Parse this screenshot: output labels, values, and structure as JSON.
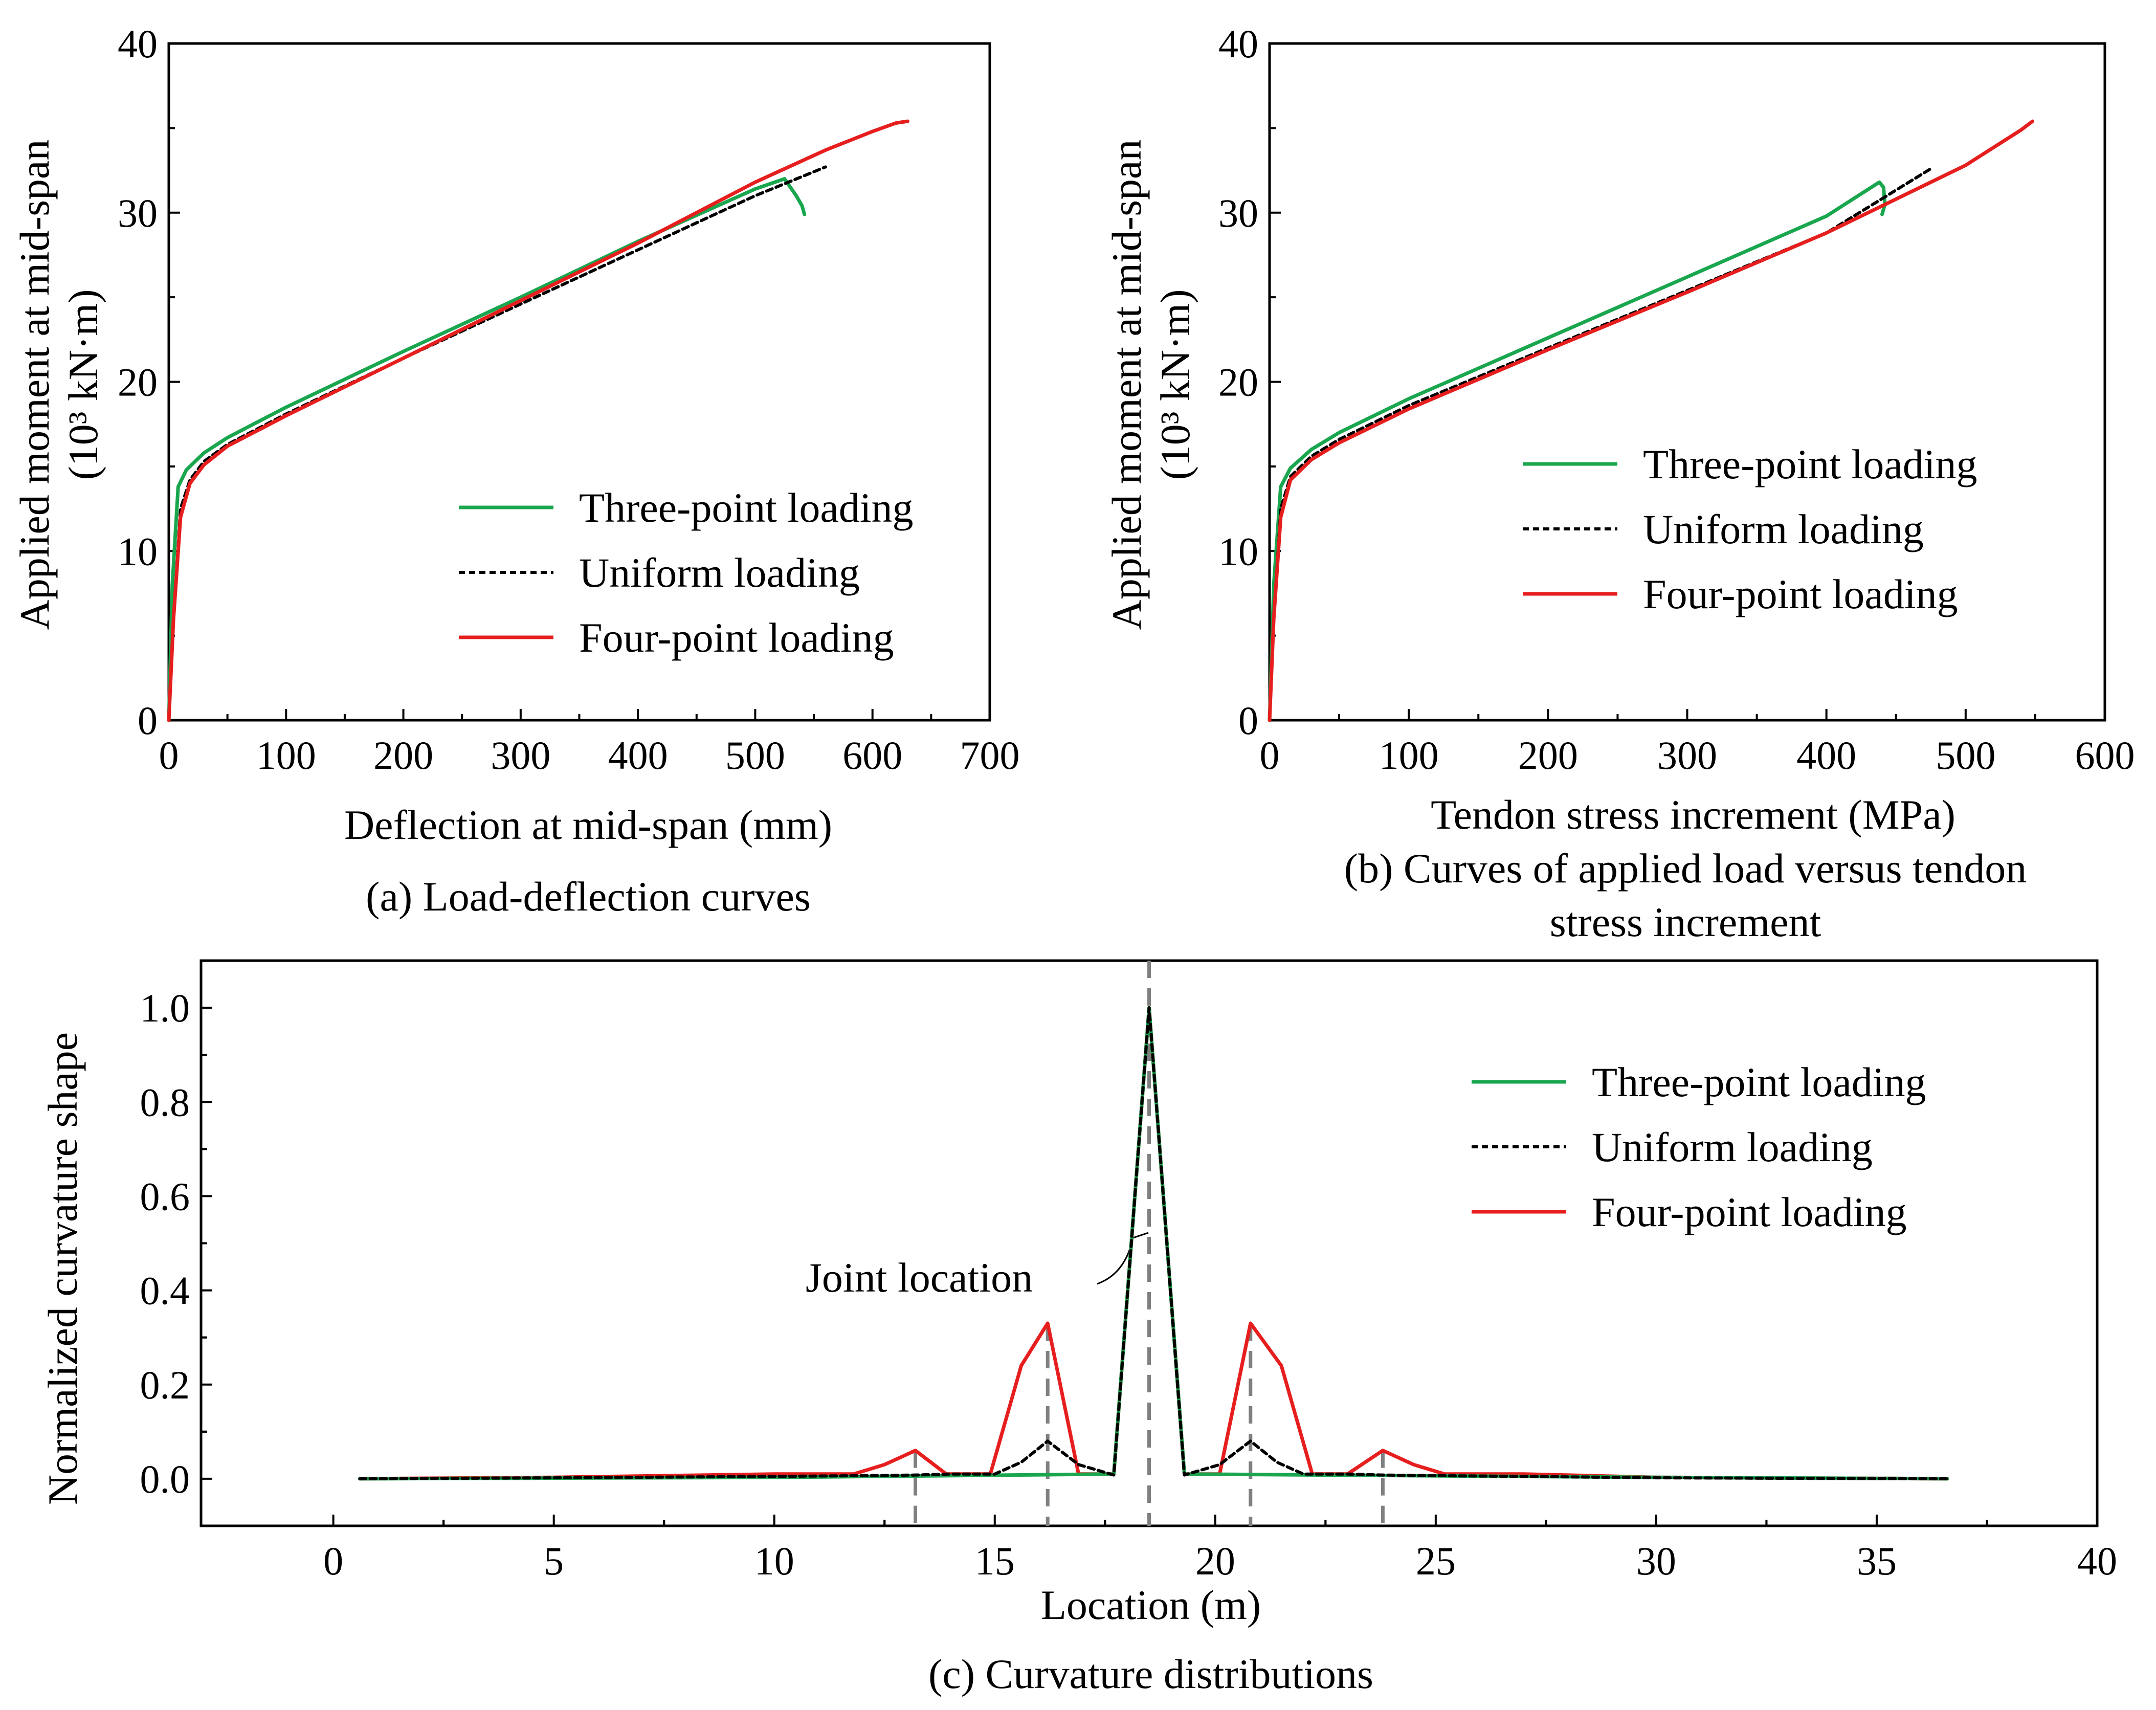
{
  "colors": {
    "three_point": "#1aa64f",
    "uniform": "#000000",
    "four_point": "#e61e1e",
    "joint": "#808080"
  },
  "chart_data": [
    {
      "type": "line",
      "caption": "(a) Load-deflection curves",
      "xlabel": "Deflection at mid-span (mm)",
      "ylabel_line1": "Applied moment at mid-span",
      "ylabel_line2": "(10³ kN·m)",
      "xlim": [
        0,
        700
      ],
      "ylim": [
        0,
        40
      ],
      "xticks": [
        0,
        100,
        200,
        300,
        400,
        500,
        600,
        700
      ],
      "yticks": [
        0,
        10,
        20,
        30,
        40
      ],
      "legend": [
        "Three-point loading",
        "Uniform loading",
        "Four-point loading"
      ],
      "series": [
        {
          "name": "Three-point loading",
          "style": "three_point",
          "x": [
            0,
            3,
            8,
            15,
            30,
            50,
            100,
            200,
            300,
            400,
            500,
            525,
            535,
            540,
            542
          ],
          "y": [
            0,
            8,
            13.8,
            14.8,
            15.8,
            16.7,
            18.5,
            21.8,
            25.0,
            28.3,
            31.4,
            32.0,
            31.0,
            30.4,
            29.9
          ]
        },
        {
          "name": "Uniform loading",
          "style": "uniform",
          "x": [
            0,
            4,
            10,
            18,
            30,
            50,
            100,
            200,
            300,
            400,
            500,
            560
          ],
          "y": [
            0,
            6,
            12.5,
            14.2,
            15.3,
            16.3,
            18.1,
            21.4,
            24.6,
            27.8,
            31.0,
            32.7
          ]
        },
        {
          "name": "Four-point loading",
          "style": "four_point",
          "x": [
            0,
            4,
            10,
            18,
            30,
            50,
            100,
            200,
            300,
            400,
            500,
            560,
            600,
            620,
            630
          ],
          "y": [
            0,
            6,
            12.0,
            14.0,
            15.1,
            16.2,
            18.0,
            21.4,
            24.8,
            28.2,
            31.8,
            33.7,
            34.8,
            35.3,
            35.4
          ]
        }
      ]
    },
    {
      "type": "line",
      "caption_line1": "(b) Curves of applied load versus tendon",
      "caption_line2": "stress increment",
      "xlabel": "Tendon stress increment (MPa)",
      "ylabel_line1": "Applied moment at mid-span",
      "ylabel_line2": "(10³ kN·m)",
      "xlim": [
        0,
        600
      ],
      "ylim": [
        0,
        40
      ],
      "xticks": [
        0,
        100,
        200,
        300,
        400,
        500,
        600
      ],
      "yticks": [
        0,
        10,
        20,
        30,
        40
      ],
      "legend": [
        "Three-point loading",
        "Uniform loading",
        "Four-point loading"
      ],
      "series": [
        {
          "name": "Three-point loading",
          "style": "three_point",
          "x": [
            0,
            3,
            8,
            15,
            30,
            50,
            100,
            200,
            300,
            400,
            438,
            441,
            442,
            440
          ],
          "y": [
            0,
            8,
            13.8,
            14.9,
            16.0,
            17.0,
            19.0,
            22.6,
            26.2,
            29.8,
            31.8,
            31.5,
            30.5,
            29.9
          ]
        },
        {
          "name": "Uniform loading",
          "style": "uniform",
          "x": [
            0,
            3,
            8,
            15,
            30,
            50,
            100,
            200,
            300,
            400,
            475
          ],
          "y": [
            0,
            6,
            12.5,
            14.4,
            15.6,
            16.6,
            18.6,
            22.0,
            25.4,
            28.8,
            32.6
          ]
        },
        {
          "name": "Four-point loading",
          "style": "four_point",
          "x": [
            0,
            3,
            8,
            15,
            30,
            50,
            100,
            200,
            300,
            400,
            500,
            540,
            548
          ],
          "y": [
            0,
            6,
            12.0,
            14.2,
            15.4,
            16.4,
            18.4,
            21.9,
            25.3,
            28.8,
            32.8,
            34.9,
            35.4
          ]
        }
      ]
    },
    {
      "type": "line",
      "caption": "(c) Curvature distributions",
      "xlabel": "Location (m)",
      "ylabel": "Normalized curvature shape",
      "xlim": [
        -3,
        40
      ],
      "ylim": [
        -0.1,
        1.1
      ],
      "xticks": [
        0,
        5,
        10,
        15,
        20,
        25,
        30,
        35,
        40
      ],
      "yticks": [
        0.0,
        0.2,
        0.4,
        0.6,
        0.8,
        1.0
      ],
      "ytick_labels": [
        "0.0",
        "0.2",
        "0.4",
        "0.6",
        "0.8",
        "1.0"
      ],
      "legend": [
        "Three-point loading",
        "Uniform loading",
        "Four-point loading"
      ],
      "annotation": "Joint location",
      "joint_locations": [
        13.2,
        16.2,
        18.5,
        20.8,
        23.8
      ],
      "series": [
        {
          "name": "Four-point loading",
          "style": "four_point",
          "x": [
            0.6,
            5,
            10,
            11.8,
            12.5,
            13.2,
            13.9,
            14.9,
            15.6,
            16.2,
            16.9,
            17.7,
            18.5,
            19.3,
            20.1,
            20.8,
            21.5,
            22.2,
            23.0,
            23.8,
            24.5,
            25.2,
            27,
            30,
            36.6
          ],
          "y": [
            0,
            0.003,
            0.01,
            0.01,
            0.03,
            0.06,
            0.01,
            0.01,
            0.24,
            0.33,
            0.01,
            0.01,
            1.0,
            0.01,
            0.01,
            0.33,
            0.24,
            0.01,
            0.01,
            0.06,
            0.03,
            0.01,
            0.01,
            0.003,
            0
          ]
        },
        {
          "name": "Three-point loading",
          "style": "three_point",
          "x": [
            0.6,
            10,
            17.7,
            18.5,
            19.3,
            30,
            36.6
          ],
          "y": [
            0,
            0.003,
            0.01,
            1.0,
            0.01,
            0.003,
            0
          ]
        },
        {
          "name": "Uniform loading",
          "style": "uniform",
          "x": [
            0.6,
            5,
            10,
            12.5,
            13.2,
            14.0,
            15.0,
            15.6,
            16.2,
            16.9,
            17.7,
            18.5,
            19.3,
            20.1,
            20.8,
            21.4,
            22.0,
            23.0,
            23.8,
            24.5,
            27,
            30,
            36.6
          ],
          "y": [
            0,
            0.002,
            0.005,
            0.007,
            0.008,
            0.01,
            0.01,
            0.035,
            0.08,
            0.03,
            0.008,
            1.0,
            0.008,
            0.03,
            0.08,
            0.035,
            0.01,
            0.01,
            0.008,
            0.007,
            0.005,
            0.002,
            0
          ]
        }
      ]
    }
  ]
}
